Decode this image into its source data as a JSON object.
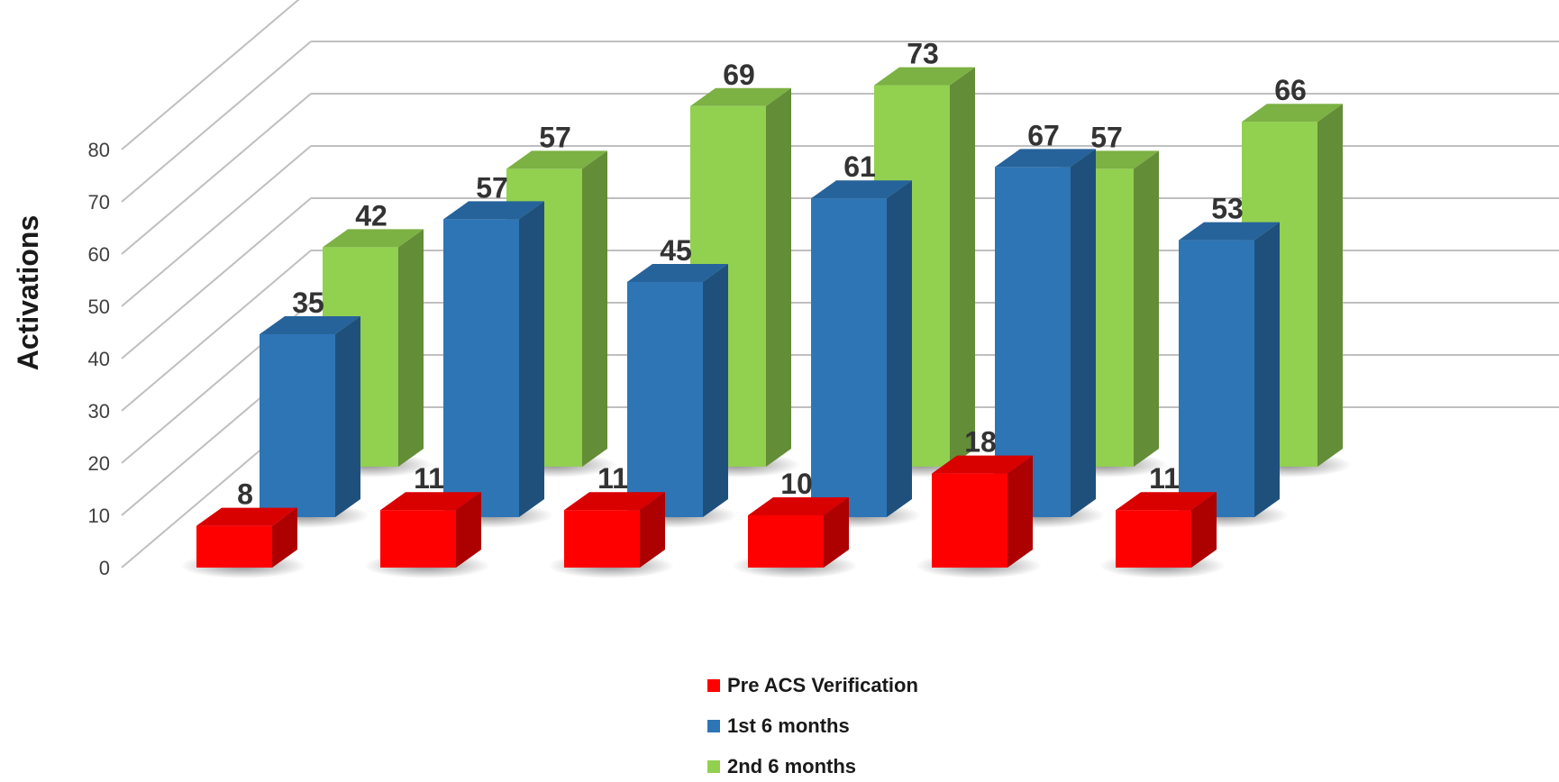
{
  "chart_data": {
    "type": "bar",
    "ylabel": "Activations",
    "ylim": [
      0,
      80
    ],
    "yticks": [
      0,
      10,
      20,
      30,
      40,
      50,
      60,
      70,
      80
    ],
    "categories": [
      "",
      "",
      "",
      "",
      "",
      ""
    ],
    "series": [
      {
        "name": "Pre ACS Verification",
        "color": "#ff0000",
        "values": [
          8,
          11,
          11,
          10,
          18,
          11
        ]
      },
      {
        "name": "1st 6 months",
        "color": "#2e75b6",
        "values": [
          35,
          57,
          45,
          61,
          67,
          53
        ]
      },
      {
        "name": "2nd 6 months",
        "color": "#92d050",
        "values": [
          42,
          57,
          69,
          73,
          57,
          66
        ]
      }
    ],
    "legend_position": "bottom",
    "grid": true
  }
}
